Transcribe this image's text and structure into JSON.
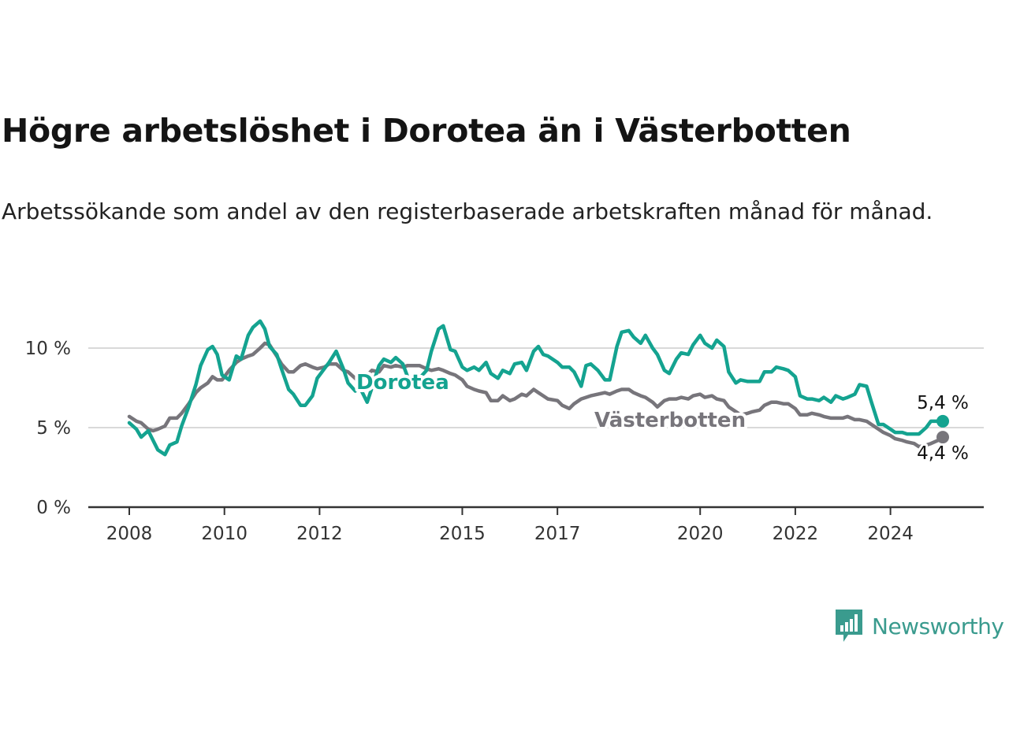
{
  "title": "Högre arbetslöshet i Dorotea än i Västerbotten",
  "subtitle": "Arbetssökande som andel av den registerbaserade arbetskraften månad för månad.",
  "brand": {
    "name": "Newsworthy",
    "color": "#3a9b8e"
  },
  "colors": {
    "dorotea": "#14a390",
    "vasterbotten": "#77757b",
    "grid": "#d9d9d9",
    "axis": "#333333"
  },
  "chart_data": {
    "type": "line",
    "x_unit": "year",
    "xlim": [
      2008,
      2025.4
    ],
    "ylim": [
      0,
      12
    ],
    "y_ticks": [
      0,
      5,
      10
    ],
    "y_tick_labels": [
      "0 %",
      "5 %",
      "10 %"
    ],
    "x_ticks": [
      2008,
      2010,
      2012,
      2015,
      2017,
      2020,
      2022,
      2024
    ],
    "x_tick_labels": [
      "2008",
      "2010",
      "2012",
      "2015",
      "2017",
      "2020",
      "2022",
      "2024"
    ],
    "grid": "horizontal",
    "series": [
      {
        "name": "Dorotea",
        "color": "#14a390",
        "end_label": "5,4 %",
        "points": [
          [
            2008.0,
            5.3
          ],
          [
            2008.15,
            4.9
          ],
          [
            2008.25,
            4.4
          ],
          [
            2008.4,
            4.8
          ],
          [
            2008.5,
            4.2
          ],
          [
            2008.6,
            3.6
          ],
          [
            2008.75,
            3.3
          ],
          [
            2008.85,
            3.9
          ],
          [
            2009.0,
            4.1
          ],
          [
            2009.1,
            5.1
          ],
          [
            2009.25,
            6.3
          ],
          [
            2009.4,
            7.7
          ],
          [
            2009.5,
            8.9
          ],
          [
            2009.65,
            9.9
          ],
          [
            2009.75,
            10.1
          ],
          [
            2009.85,
            9.6
          ],
          [
            2009.95,
            8.3
          ],
          [
            2010.1,
            8.0
          ],
          [
            2010.25,
            9.5
          ],
          [
            2010.35,
            9.3
          ],
          [
            2010.5,
            10.8
          ],
          [
            2010.6,
            11.3
          ],
          [
            2010.75,
            11.7
          ],
          [
            2010.85,
            11.2
          ],
          [
            2010.95,
            10.1
          ],
          [
            2011.1,
            9.6
          ],
          [
            2011.2,
            8.7
          ],
          [
            2011.35,
            7.4
          ],
          [
            2011.45,
            7.1
          ],
          [
            2011.6,
            6.4
          ],
          [
            2011.7,
            6.4
          ],
          [
            2011.85,
            7.0
          ],
          [
            2011.95,
            8.1
          ],
          [
            2012.1,
            8.7
          ],
          [
            2012.2,
            9.1
          ],
          [
            2012.35,
            9.8
          ],
          [
            2012.5,
            8.7
          ],
          [
            2012.6,
            7.8
          ],
          [
            2012.75,
            7.3
          ],
          [
            2012.85,
            7.5
          ],
          [
            2013.0,
            6.6
          ],
          [
            2013.1,
            7.5
          ],
          [
            2013.25,
            8.9
          ],
          [
            2013.35,
            9.3
          ],
          [
            2013.5,
            9.1
          ],
          [
            2013.6,
            9.4
          ],
          [
            2013.75,
            9.0
          ],
          [
            2013.85,
            8.2
          ],
          [
            2014.0,
            7.8
          ],
          [
            2014.1,
            8.1
          ],
          [
            2014.25,
            8.6
          ],
          [
            2014.35,
            9.8
          ],
          [
            2014.5,
            11.2
          ],
          [
            2014.6,
            11.4
          ],
          [
            2014.75,
            9.9
          ],
          [
            2014.85,
            9.8
          ],
          [
            2015.0,
            8.8
          ],
          [
            2015.1,
            8.6
          ],
          [
            2015.25,
            8.8
          ],
          [
            2015.35,
            8.6
          ],
          [
            2015.5,
            9.1
          ],
          [
            2015.6,
            8.4
          ],
          [
            2015.75,
            8.1
          ],
          [
            2015.85,
            8.6
          ],
          [
            2016.0,
            8.4
          ],
          [
            2016.1,
            9.0
          ],
          [
            2016.25,
            9.1
          ],
          [
            2016.35,
            8.6
          ],
          [
            2016.5,
            9.8
          ],
          [
            2016.6,
            10.1
          ],
          [
            2016.7,
            9.6
          ],
          [
            2016.8,
            9.5
          ],
          [
            2017.0,
            9.1
          ],
          [
            2017.1,
            8.8
          ],
          [
            2017.25,
            8.8
          ],
          [
            2017.35,
            8.5
          ],
          [
            2017.5,
            7.6
          ],
          [
            2017.6,
            8.9
          ],
          [
            2017.7,
            9.0
          ],
          [
            2017.85,
            8.6
          ],
          [
            2018.0,
            8.0
          ],
          [
            2018.1,
            8.0
          ],
          [
            2018.25,
            10.1
          ],
          [
            2018.35,
            11.0
          ],
          [
            2018.5,
            11.1
          ],
          [
            2018.6,
            10.7
          ],
          [
            2018.75,
            10.3
          ],
          [
            2018.85,
            10.8
          ],
          [
            2019.0,
            10.0
          ],
          [
            2019.1,
            9.6
          ],
          [
            2019.25,
            8.6
          ],
          [
            2019.35,
            8.4
          ],
          [
            2019.5,
            9.3
          ],
          [
            2019.6,
            9.7
          ],
          [
            2019.75,
            9.6
          ],
          [
            2019.85,
            10.2
          ],
          [
            2020.0,
            10.8
          ],
          [
            2020.1,
            10.3
          ],
          [
            2020.25,
            10.0
          ],
          [
            2020.35,
            10.5
          ],
          [
            2020.5,
            10.1
          ],
          [
            2020.6,
            8.5
          ],
          [
            2020.75,
            7.8
          ],
          [
            2020.85,
            8.0
          ],
          [
            2021.0,
            7.9
          ],
          [
            2021.1,
            7.9
          ],
          [
            2021.25,
            7.9
          ],
          [
            2021.35,
            8.5
          ],
          [
            2021.5,
            8.5
          ],
          [
            2021.6,
            8.8
          ],
          [
            2021.75,
            8.7
          ],
          [
            2021.85,
            8.6
          ],
          [
            2022.0,
            8.2
          ],
          [
            2022.1,
            7.0
          ],
          [
            2022.25,
            6.8
          ],
          [
            2022.35,
            6.8
          ],
          [
            2022.5,
            6.7
          ],
          [
            2022.6,
            6.9
          ],
          [
            2022.75,
            6.6
          ],
          [
            2022.85,
            7.0
          ],
          [
            2023.0,
            6.8
          ],
          [
            2023.1,
            6.9
          ],
          [
            2023.25,
            7.1
          ],
          [
            2023.35,
            7.7
          ],
          [
            2023.5,
            7.6
          ],
          [
            2023.6,
            6.6
          ],
          [
            2023.75,
            5.2
          ],
          [
            2023.85,
            5.2
          ],
          [
            2024.0,
            4.9
          ],
          [
            2024.1,
            4.7
          ],
          [
            2024.25,
            4.7
          ],
          [
            2024.35,
            4.6
          ],
          [
            2024.5,
            4.6
          ],
          [
            2024.6,
            4.6
          ],
          [
            2024.75,
            5.0
          ],
          [
            2024.85,
            5.4
          ],
          [
            2025.0,
            5.4
          ],
          [
            2025.1,
            5.4
          ]
        ]
      },
      {
        "name": "Västerbotten",
        "color": "#77757b",
        "end_label": "4,4 %",
        "points": [
          [
            2008.0,
            5.7
          ],
          [
            2008.15,
            5.4
          ],
          [
            2008.25,
            5.3
          ],
          [
            2008.4,
            4.9
          ],
          [
            2008.5,
            4.8
          ],
          [
            2008.6,
            4.9
          ],
          [
            2008.75,
            5.1
          ],
          [
            2008.85,
            5.6
          ],
          [
            2009.0,
            5.6
          ],
          [
            2009.1,
            5.9
          ],
          [
            2009.25,
            6.5
          ],
          [
            2009.4,
            7.2
          ],
          [
            2009.5,
            7.5
          ],
          [
            2009.65,
            7.8
          ],
          [
            2009.75,
            8.2
          ],
          [
            2009.85,
            8.0
          ],
          [
            2009.95,
            8.0
          ],
          [
            2010.1,
            8.6
          ],
          [
            2010.25,
            9.1
          ],
          [
            2010.35,
            9.3
          ],
          [
            2010.5,
            9.5
          ],
          [
            2010.6,
            9.6
          ],
          [
            2010.75,
            10.0
          ],
          [
            2010.85,
            10.3
          ],
          [
            2010.95,
            10.2
          ],
          [
            2011.1,
            9.5
          ],
          [
            2011.2,
            9.0
          ],
          [
            2011.35,
            8.5
          ],
          [
            2011.45,
            8.5
          ],
          [
            2011.6,
            8.9
          ],
          [
            2011.7,
            9.0
          ],
          [
            2011.85,
            8.8
          ],
          [
            2011.95,
            8.7
          ],
          [
            2012.1,
            8.8
          ],
          [
            2012.2,
            9.0
          ],
          [
            2012.35,
            9.0
          ],
          [
            2012.5,
            8.6
          ],
          [
            2012.6,
            8.5
          ],
          [
            2012.75,
            8.1
          ],
          [
            2012.85,
            7.8
          ],
          [
            2013.0,
            8.3
          ],
          [
            2013.1,
            8.6
          ],
          [
            2013.25,
            8.5
          ],
          [
            2013.35,
            8.9
          ],
          [
            2013.5,
            8.8
          ],
          [
            2013.6,
            8.9
          ],
          [
            2013.75,
            8.8
          ],
          [
            2013.85,
            8.9
          ],
          [
            2014.0,
            8.9
          ],
          [
            2014.1,
            8.9
          ],
          [
            2014.25,
            8.7
          ],
          [
            2014.35,
            8.6
          ],
          [
            2014.5,
            8.7
          ],
          [
            2014.6,
            8.6
          ],
          [
            2014.75,
            8.4
          ],
          [
            2014.85,
            8.3
          ],
          [
            2015.0,
            8.0
          ],
          [
            2015.1,
            7.6
          ],
          [
            2015.25,
            7.4
          ],
          [
            2015.35,
            7.3
          ],
          [
            2015.5,
            7.2
          ],
          [
            2015.6,
            6.7
          ],
          [
            2015.75,
            6.7
          ],
          [
            2015.85,
            7.0
          ],
          [
            2016.0,
            6.7
          ],
          [
            2016.1,
            6.8
          ],
          [
            2016.25,
            7.1
          ],
          [
            2016.35,
            7.0
          ],
          [
            2016.5,
            7.4
          ],
          [
            2016.6,
            7.2
          ],
          [
            2016.7,
            7.0
          ],
          [
            2016.8,
            6.8
          ],
          [
            2017.0,
            6.7
          ],
          [
            2017.1,
            6.4
          ],
          [
            2017.25,
            6.2
          ],
          [
            2017.35,
            6.5
          ],
          [
            2017.5,
            6.8
          ],
          [
            2017.6,
            6.9
          ],
          [
            2017.7,
            7.0
          ],
          [
            2017.85,
            7.1
          ],
          [
            2018.0,
            7.2
          ],
          [
            2018.1,
            7.1
          ],
          [
            2018.25,
            7.3
          ],
          [
            2018.35,
            7.4
          ],
          [
            2018.5,
            7.4
          ],
          [
            2018.6,
            7.2
          ],
          [
            2018.75,
            7.0
          ],
          [
            2018.85,
            6.9
          ],
          [
            2019.0,
            6.6
          ],
          [
            2019.1,
            6.3
          ],
          [
            2019.25,
            6.7
          ],
          [
            2019.35,
            6.8
          ],
          [
            2019.5,
            6.8
          ],
          [
            2019.6,
            6.9
          ],
          [
            2019.75,
            6.8
          ],
          [
            2019.85,
            7.0
          ],
          [
            2020.0,
            7.1
          ],
          [
            2020.1,
            6.9
          ],
          [
            2020.25,
            7.0
          ],
          [
            2020.35,
            6.8
          ],
          [
            2020.5,
            6.7
          ],
          [
            2020.6,
            6.3
          ],
          [
            2020.75,
            6.0
          ],
          [
            2020.85,
            5.8
          ],
          [
            2021.0,
            5.9
          ],
          [
            2021.1,
            6.0
          ],
          [
            2021.25,
            6.1
          ],
          [
            2021.35,
            6.4
          ],
          [
            2021.5,
            6.6
          ],
          [
            2021.6,
            6.6
          ],
          [
            2021.75,
            6.5
          ],
          [
            2021.85,
            6.5
          ],
          [
            2022.0,
            6.2
          ],
          [
            2022.1,
            5.8
          ],
          [
            2022.25,
            5.8
          ],
          [
            2022.35,
            5.9
          ],
          [
            2022.5,
            5.8
          ],
          [
            2022.6,
            5.7
          ],
          [
            2022.75,
            5.6
          ],
          [
            2022.85,
            5.6
          ],
          [
            2023.0,
            5.6
          ],
          [
            2023.1,
            5.7
          ],
          [
            2023.25,
            5.5
          ],
          [
            2023.35,
            5.5
          ],
          [
            2023.5,
            5.4
          ],
          [
            2023.6,
            5.2
          ],
          [
            2023.75,
            4.9
          ],
          [
            2023.85,
            4.7
          ],
          [
            2024.0,
            4.5
          ],
          [
            2024.1,
            4.3
          ],
          [
            2024.25,
            4.2
          ],
          [
            2024.35,
            4.1
          ],
          [
            2024.5,
            4.0
          ],
          [
            2024.6,
            3.8
          ],
          [
            2024.75,
            3.9
          ],
          [
            2024.85,
            4.0
          ],
          [
            2025.0,
            4.2
          ],
          [
            2025.1,
            4.4
          ]
        ]
      }
    ]
  }
}
